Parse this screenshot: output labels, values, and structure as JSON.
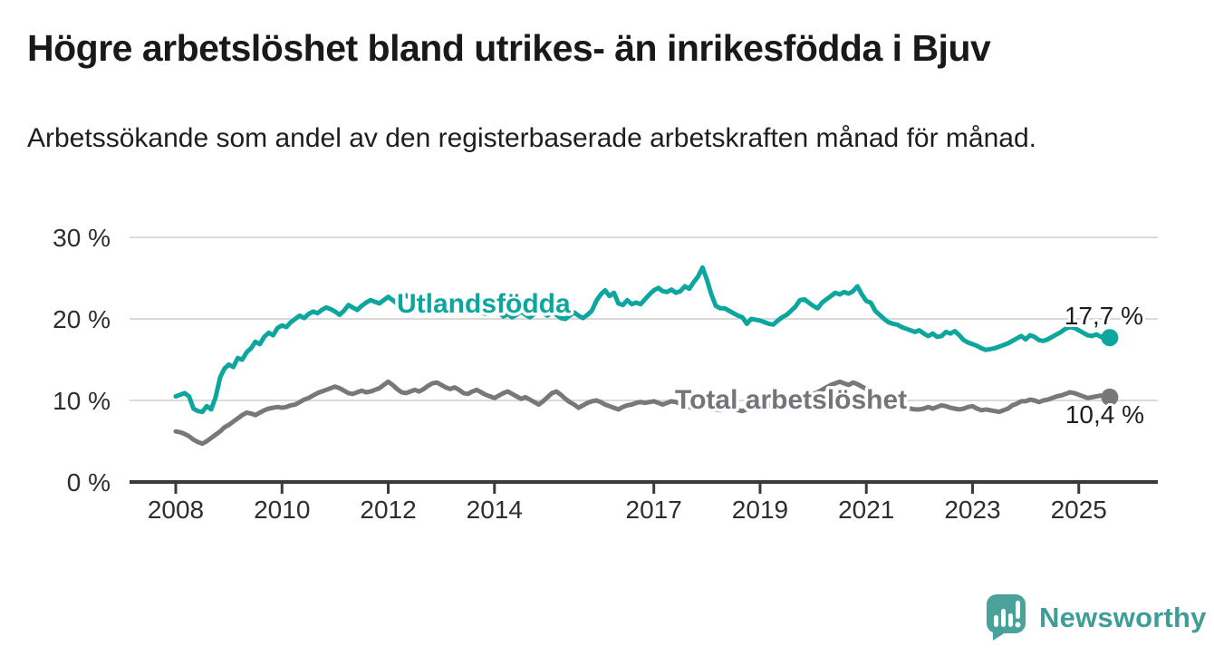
{
  "header": {
    "title": "Högre arbetslöshet bland utrikes- än inrikesfödda i Bjuv",
    "subtitle": "Arbetssökande som andel av den registerbaserade arbetskraften månad för månad."
  },
  "chart_data": {
    "type": "line",
    "title": "Högre arbetslöshet bland utrikes- än inrikesfödda i Bjuv",
    "unit": "%",
    "frequency": "monthly",
    "x_start": "2008-01",
    "x_end": "2025-08",
    "grid": true,
    "ylim": [
      0,
      30
    ],
    "y_gridlines": [
      10,
      20,
      30
    ],
    "y_tick_labels": [
      "30 %",
      "20 %",
      "10 %",
      "0 %"
    ],
    "x_tick_years": [
      2008,
      2010,
      2012,
      2014,
      2017,
      2019,
      2021,
      2023,
      2025
    ],
    "x_tick_labels": [
      "2008",
      "2010",
      "2012",
      "2014",
      "2017",
      "2019",
      "2021",
      "2023",
      "2025"
    ],
    "series": [
      {
        "name": "Utlandsfödda",
        "color": "#0da69e",
        "end_label": "17,7 %",
        "end_value": 17.7,
        "values": [
          10.5,
          10.7,
          10.9,
          10.5,
          9.0,
          8.7,
          8.6,
          9.3,
          8.9,
          10.4,
          12.8,
          13.9,
          14.4,
          14.1,
          15.2,
          15.0,
          15.9,
          16.4,
          17.2,
          16.9,
          17.8,
          18.3,
          18.0,
          18.9,
          19.2,
          19.0,
          19.6,
          20.0,
          20.4,
          20.1,
          20.6,
          20.9,
          20.7,
          21.1,
          21.4,
          21.2,
          20.9,
          20.5,
          21.0,
          21.7,
          21.4,
          21.1,
          21.6,
          22.0,
          22.3,
          22.1,
          21.9,
          22.3,
          22.7,
          22.3,
          21.9,
          22.5,
          22.9,
          22.5,
          22.1,
          22.6,
          23.0,
          22.7,
          22.3,
          22.1,
          22.4,
          22.0,
          21.6,
          21.9,
          22.2,
          21.8,
          21.4,
          21.0,
          21.3,
          20.9,
          20.6,
          20.9,
          21.2,
          20.8,
          20.3,
          20.6,
          20.2,
          20.5,
          20.9,
          20.5,
          20.2,
          20.6,
          21.0,
          20.7,
          20.4,
          20.8,
          20.5,
          20.1,
          20.0,
          20.4,
          20.8,
          20.4,
          20.1,
          20.5,
          21.0,
          22.2,
          23.0,
          23.5,
          22.8,
          23.2,
          21.9,
          21.7,
          22.3,
          21.8,
          22.0,
          21.8,
          22.4,
          23.0,
          23.5,
          23.8,
          23.4,
          23.3,
          23.6,
          23.2,
          23.4,
          24.0,
          23.7,
          24.5,
          25.2,
          26.3,
          24.8,
          23.0,
          21.6,
          21.3,
          21.3,
          21.0,
          20.7,
          20.4,
          20.2,
          19.4,
          20.0,
          19.9,
          19.8,
          19.6,
          19.4,
          19.3,
          19.8,
          20.2,
          20.5,
          21.0,
          21.5,
          22.3,
          22.4,
          22.0,
          21.6,
          21.3,
          22.0,
          22.4,
          22.8,
          23.2,
          23.0,
          23.3,
          23.1,
          23.4,
          24.0,
          23.0,
          22.2,
          22.0,
          21.0,
          20.5,
          20.0,
          19.6,
          19.4,
          19.3,
          19.0,
          18.8,
          18.6,
          18.4,
          18.6,
          18.2,
          17.9,
          18.2,
          17.8,
          17.9,
          18.4,
          18.2,
          18.5,
          18.0,
          17.4,
          17.1,
          16.9,
          16.7,
          16.4,
          16.2,
          16.3,
          16.4,
          16.6,
          16.8,
          17.0,
          17.3,
          17.6,
          17.9,
          17.5,
          18.0,
          17.8,
          17.4,
          17.3,
          17.5,
          17.8,
          18.1,
          18.4,
          18.8,
          19.0,
          18.9,
          18.6,
          18.3,
          18.0,
          17.9,
          18.1,
          17.8,
          17.9,
          17.7
        ]
      },
      {
        "name": "Total arbetslöshet",
        "color": "#77787b",
        "end_label": "10,4 %",
        "end_value": 10.4,
        "values": [
          6.2,
          6.1,
          5.9,
          5.6,
          5.2,
          4.9,
          4.7,
          5.0,
          5.4,
          5.8,
          6.2,
          6.7,
          7.0,
          7.4,
          7.8,
          8.2,
          8.5,
          8.4,
          8.2,
          8.5,
          8.8,
          9.0,
          9.1,
          9.2,
          9.1,
          9.2,
          9.4,
          9.5,
          9.8,
          10.1,
          10.3,
          10.6,
          10.9,
          11.1,
          11.3,
          11.5,
          11.7,
          11.5,
          11.2,
          10.9,
          10.8,
          11.0,
          11.2,
          11.0,
          11.1,
          11.3,
          11.5,
          11.9,
          12.3,
          11.9,
          11.4,
          11.0,
          10.9,
          11.1,
          11.3,
          11.1,
          11.4,
          11.8,
          12.1,
          12.2,
          11.9,
          11.6,
          11.4,
          11.6,
          11.3,
          10.9,
          10.8,
          11.1,
          11.3,
          11.0,
          10.7,
          10.5,
          10.3,
          10.6,
          10.9,
          11.1,
          10.8,
          10.5,
          10.2,
          10.4,
          10.1,
          9.8,
          9.5,
          9.9,
          10.4,
          10.9,
          11.1,
          10.7,
          10.2,
          9.8,
          9.5,
          9.1,
          9.4,
          9.7,
          9.9,
          10.0,
          9.8,
          9.5,
          9.3,
          9.1,
          8.9,
          9.2,
          9.4,
          9.5,
          9.7,
          9.8,
          9.7,
          9.8,
          9.9,
          9.7,
          9.5,
          9.7,
          9.9,
          9.8,
          9.6,
          9.4,
          9.2,
          9.0,
          8.9,
          9.1,
          9.3,
          9.1,
          8.9,
          8.8,
          9.0,
          9.2,
          9.0,
          8.8,
          8.7,
          8.9,
          9.1,
          9.3,
          9.4,
          9.6,
          9.5,
          9.3,
          9.5,
          9.7,
          9.6,
          9.8,
          10.0,
          10.2,
          10.4,
          10.6,
          10.8,
          11.0,
          11.3,
          11.6,
          11.9,
          12.1,
          12.3,
          12.1,
          11.9,
          12.2,
          12.0,
          11.7,
          11.4,
          11.1,
          10.8,
          10.5,
          10.2,
          9.9,
          9.7,
          9.5,
          9.3,
          9.1,
          9.0,
          8.9,
          8.9,
          9.0,
          9.2,
          9.0,
          9.2,
          9.4,
          9.3,
          9.1,
          9.0,
          8.9,
          9.0,
          9.2,
          9.3,
          9.0,
          8.8,
          8.9,
          8.8,
          8.7,
          8.6,
          8.8,
          9.0,
          9.4,
          9.6,
          9.9,
          9.9,
          10.1,
          10.0,
          9.8,
          10.0,
          10.1,
          10.3,
          10.5,
          10.6,
          10.8,
          11.0,
          10.9,
          10.7,
          10.5,
          10.3,
          10.4,
          10.5,
          10.6,
          10.5,
          10.4
        ]
      }
    ],
    "legend_position": "inline-labels"
  },
  "footer": {
    "brand": "Newsworthy",
    "brand_color": "#3e9d97",
    "icon_color": "#4aa29b"
  }
}
